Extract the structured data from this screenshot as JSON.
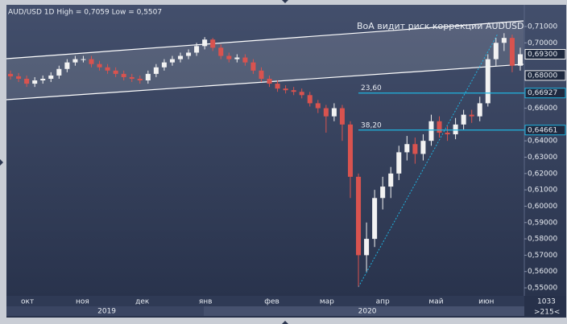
{
  "chart_data": {
    "type": "candlestick",
    "title": "AUD/USD 1D High = 0,7059 Low = 0,5507",
    "annotation": "BoA видит риск коррекции AUDUSD",
    "footer": [
      "1033",
      ">215<"
    ],
    "up_color": "#f2f2f2",
    "down_color": "#d9534f",
    "open": [
      0.681,
      0.6795,
      0.678,
      0.675,
      0.677,
      0.678,
      0.68,
      0.684,
      0.688,
      0.69,
      0.69,
      0.687,
      0.685,
      0.683,
      0.681,
      0.679,
      0.678,
      0.677,
      0.681,
      0.685,
      0.688,
      0.69,
      0.692,
      0.694,
      0.698,
      0.702,
      0.697,
      0.692,
      0.69,
      0.691,
      0.688,
      0.683,
      0.678,
      0.675,
      0.672,
      0.671,
      0.67,
      0.668,
      0.663,
      0.66,
      0.655,
      0.66,
      0.65,
      0.618,
      0.57,
      0.58,
      0.605,
      0.612,
      0.62,
      0.633,
      0.638,
      0.632,
      0.64,
      0.652,
      0.645,
      0.644,
      0.65,
      0.656,
      0.655,
      0.663,
      0.69,
      0.7,
      0.703,
      0.686
    ],
    "high": [
      0.683,
      0.6815,
      0.68,
      0.679,
      0.68,
      0.682,
      0.686,
      0.69,
      0.692,
      0.692,
      0.692,
      0.689,
      0.687,
      0.685,
      0.683,
      0.681,
      0.68,
      0.683,
      0.687,
      0.69,
      0.692,
      0.694,
      0.696,
      0.7,
      0.7035,
      0.703,
      0.699,
      0.694,
      0.693,
      0.693,
      0.69,
      0.685,
      0.68,
      0.677,
      0.674,
      0.673,
      0.672,
      0.67,
      0.665,
      0.662,
      0.663,
      0.662,
      0.652,
      0.62,
      0.59,
      0.61,
      0.618,
      0.624,
      0.637,
      0.643,
      0.642,
      0.644,
      0.656,
      0.655,
      0.649,
      0.654,
      0.659,
      0.659,
      0.667,
      0.693,
      0.703,
      0.7059,
      0.705,
      0.697
    ],
    "low": [
      0.6775,
      0.676,
      0.673,
      0.673,
      0.675,
      0.676,
      0.678,
      0.682,
      0.686,
      0.688,
      0.685,
      0.683,
      0.681,
      0.679,
      0.677,
      0.676,
      0.675,
      0.675,
      0.679,
      0.683,
      0.686,
      0.688,
      0.69,
      0.692,
      0.696,
      0.695,
      0.69,
      0.688,
      0.688,
      0.686,
      0.681,
      0.676,
      0.673,
      0.67,
      0.669,
      0.668,
      0.666,
      0.661,
      0.657,
      0.645,
      0.652,
      0.64,
      0.605,
      0.5507,
      0.56,
      0.575,
      0.598,
      0.605,
      0.616,
      0.628,
      0.626,
      0.628,
      0.637,
      0.642,
      0.64,
      0.641,
      0.647,
      0.651,
      0.652,
      0.661,
      0.686,
      0.695,
      0.682,
      0.683
    ],
    "close": [
      0.6795,
      0.678,
      0.675,
      0.677,
      0.678,
      0.68,
      0.684,
      0.688,
      0.69,
      0.69,
      0.687,
      0.685,
      0.683,
      0.681,
      0.679,
      0.678,
      0.677,
      0.681,
      0.685,
      0.688,
      0.69,
      0.692,
      0.694,
      0.698,
      0.702,
      0.697,
      0.692,
      0.69,
      0.691,
      0.688,
      0.683,
      0.678,
      0.675,
      0.672,
      0.671,
      0.67,
      0.668,
      0.663,
      0.66,
      0.655,
      0.66,
      0.65,
      0.618,
      0.57,
      0.58,
      0.605,
      0.612,
      0.62,
      0.633,
      0.638,
      0.632,
      0.64,
      0.652,
      0.645,
      0.644,
      0.65,
      0.656,
      0.655,
      0.663,
      0.69,
      0.7,
      0.703,
      0.686,
      0.693
    ],
    "xlim": [
      0,
      64
    ],
    "xticks": [
      {
        "value": 2.6,
        "label": "окт"
      },
      {
        "value": 9.4,
        "label": "ноя"
      },
      {
        "value": 16.8,
        "label": "дек"
      },
      {
        "value": 24.6,
        "label": "янв"
      },
      {
        "value": 32.8,
        "label": "фев"
      },
      {
        "value": 39.6,
        "label": "мар"
      },
      {
        "value": 46.5,
        "label": "апр"
      },
      {
        "value": 53.1,
        "label": "май"
      },
      {
        "value": 59.3,
        "label": "июн"
      }
    ],
    "year_ticks": [
      {
        "value": 12.4,
        "label": "2019"
      },
      {
        "value": 44.6,
        "label": "2020"
      }
    ],
    "ylim": [
      0.5451,
      0.7213
    ],
    "yticks": [
      {
        "value": 0.71,
        "label": "0,71000"
      },
      {
        "value": 0.7,
        "label": "0,70000"
      },
      {
        "value": 0.66,
        "label": "0,66000"
      },
      {
        "value": 0.64,
        "label": "0,64000"
      },
      {
        "value": 0.63,
        "label": "0,63000"
      },
      {
        "value": 0.62,
        "label": "0,62000"
      },
      {
        "value": 0.61,
        "label": "0,61000"
      },
      {
        "value": 0.6,
        "label": "0,60000"
      },
      {
        "value": 0.59,
        "label": "0,59000"
      },
      {
        "value": 0.58,
        "label": "0,58000"
      },
      {
        "value": 0.57,
        "label": "0,57000"
      },
      {
        "value": 0.56,
        "label": "0,56000"
      },
      {
        "value": 0.55,
        "label": "0,55000"
      }
    ],
    "price_labels": [
      {
        "value": 0.693,
        "label": "0,69300"
      },
      {
        "value": 0.68,
        "label": "0,68000"
      }
    ],
    "levels": [
      {
        "value": 0.66927,
        "label": "0,66927",
        "name": "23,60"
      },
      {
        "value": 0.64661,
        "label": "0,64661",
        "name": "38,20"
      }
    ],
    "level_color": "#1fb4e0"
  }
}
